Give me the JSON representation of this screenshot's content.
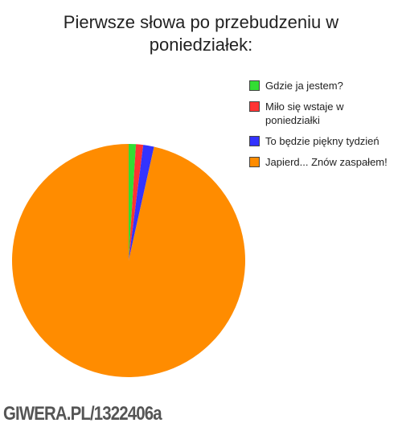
{
  "chart_data": {
    "type": "pie",
    "title": "Pierwsze słowa po przebudzeniu w poniedziałek:",
    "categories": [
      "Gdzie ja jestem?",
      "Miło się wstaje w poniedziałki",
      "To będzie piękny tydzień",
      "Japierd... Znów zaspałem!"
    ],
    "values": [
      1,
      1,
      1.5,
      96.5
    ],
    "colors": [
      "#33dd33",
      "#ff3333",
      "#3333ff",
      "#ff8c00"
    ],
    "legend": "right"
  },
  "watermark": "GIWERA.PL/1322406a"
}
